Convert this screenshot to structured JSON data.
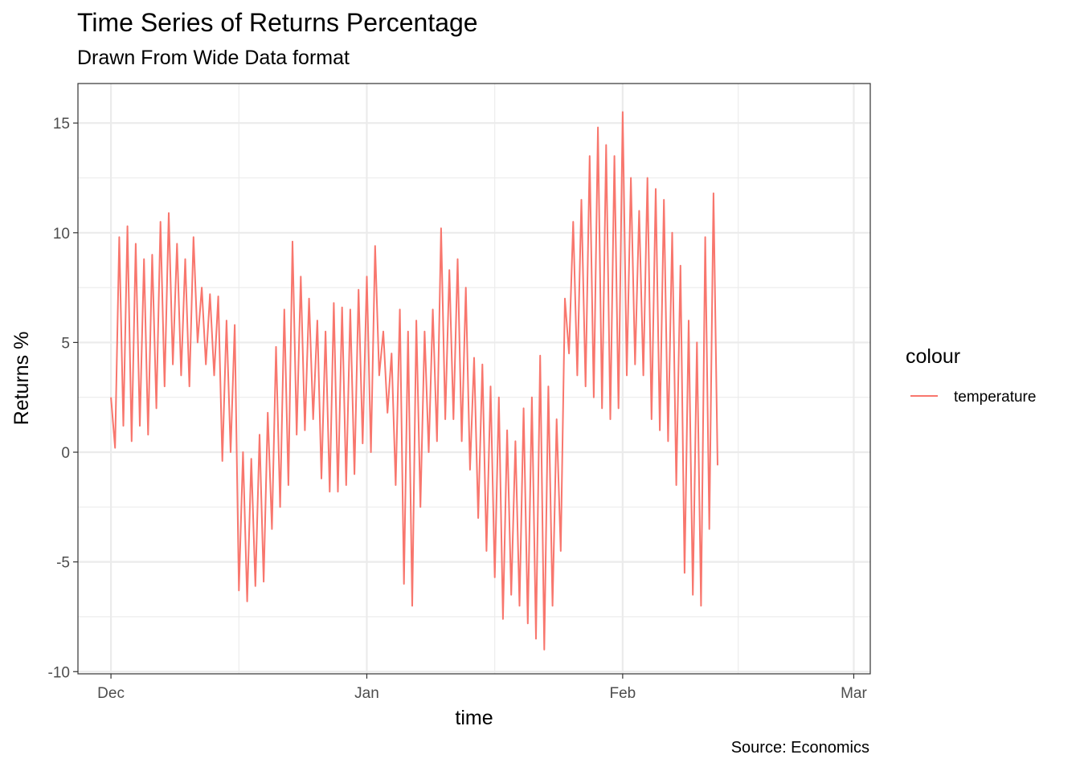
{
  "title": "Time Series of Returns Percentage",
  "subtitle": "Drawn From Wide Data format",
  "caption": "Source: Economics",
  "colors": {
    "series": "#f8766d",
    "grid": "#ebebeb",
    "panel_border": "#333333"
  },
  "chart_data": {
    "type": "line",
    "title": "Time Series of Returns Percentage",
    "subtitle": "Drawn From Wide Data format",
    "xlabel": "time",
    "ylabel": "Returns %",
    "x_range": [
      "2017-11-27",
      "2018-03-03"
    ],
    "ylim": [
      -10.1,
      16.8
    ],
    "x_ticks": [
      {
        "date": "2017-12-01",
        "label": "Dec"
      },
      {
        "date": "2018-01-01",
        "label": "Jan"
      },
      {
        "date": "2018-02-01",
        "label": "Feb"
      },
      {
        "date": "2018-03-01",
        "label": "Mar"
      }
    ],
    "y_ticks": [
      {
        "value": -10,
        "label": "-10"
      },
      {
        "value": -5,
        "label": "-5"
      },
      {
        "value": 0,
        "label": "0"
      },
      {
        "value": 5,
        "label": "5"
      },
      {
        "value": 10,
        "label": "10"
      },
      {
        "value": 15,
        "label": "15"
      }
    ],
    "grid": true,
    "legend": {
      "title": "colour",
      "position": "right",
      "entries": [
        "temperature"
      ]
    },
    "series": [
      {
        "name": "temperature",
        "color": "#f8766d",
        "x_start": "2017-12-01",
        "step_days": 0.5,
        "values": [
          2.5,
          0.2,
          9.8,
          1.2,
          10.3,
          0.5,
          9.5,
          1.2,
          8.8,
          0.8,
          9.0,
          2.0,
          10.5,
          3.0,
          10.9,
          4.0,
          9.5,
          3.5,
          8.8,
          3.0,
          9.8,
          5.0,
          7.5,
          4.0,
          7.2,
          3.5,
          7.1,
          -0.4,
          6.0,
          0.0,
          5.8,
          -6.3,
          0.0,
          -6.8,
          -0.3,
          -6.1,
          0.8,
          -5.9,
          1.8,
          -3.5,
          4.8,
          -2.5,
          6.5,
          -1.5,
          9.6,
          0.8,
          8.0,
          1.0,
          7.0,
          1.5,
          6.0,
          -1.2,
          5.5,
          -1.8,
          6.8,
          -1.8,
          6.6,
          -1.5,
          6.5,
          -1.0,
          7.4,
          0.4,
          8.0,
          0.0,
          9.4,
          3.5,
          5.5,
          1.8,
          4.5,
          -1.5,
          6.5,
          -6.0,
          5.5,
          -7.0,
          6.0,
          -2.5,
          5.5,
          0.0,
          6.5,
          0.5,
          10.2,
          1.5,
          8.3,
          1.5,
          8.8,
          0.5,
          7.5,
          -0.8,
          4.3,
          -3.0,
          4.0,
          -4.5,
          3.0,
          -5.7,
          2.5,
          -7.6,
          1.0,
          -6.5,
          0.5,
          -7.0,
          2.0,
          -7.8,
          2.5,
          -8.5,
          4.4,
          -9.0,
          3.0,
          -7.0,
          1.5,
          -4.5,
          7.0,
          4.5,
          10.5,
          3.5,
          11.5,
          3.0,
          13.5,
          2.5,
          14.8,
          2.0,
          14.0,
          1.5,
          13.5,
          2.0,
          15.5,
          3.5,
          12.5,
          4.0,
          11.0,
          3.5,
          12.5,
          1.5,
          12.0,
          1.0,
          11.5,
          0.5,
          10.0,
          -1.5,
          8.5,
          -5.5,
          6.0,
          -6.5,
          5.0,
          -7.0,
          9.8,
          -3.5,
          11.8,
          -0.6
        ]
      }
    ]
  }
}
